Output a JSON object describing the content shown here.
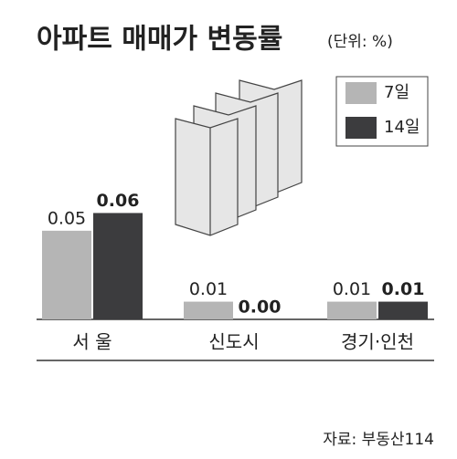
{
  "chart_data": {
    "type": "bar",
    "title": "아파트 매매가 변동률",
    "subtitle": "(단위: %)",
    "source": "자료: 부동산114",
    "categories": [
      "서 울",
      "신도시",
      "경기·인천"
    ],
    "series": [
      {
        "name": "7일",
        "color": "#b5b5b5",
        "values": [
          0.05,
          0.01,
          0.01
        ],
        "value_labels": [
          "0.05",
          "0.01",
          "0.01"
        ]
      },
      {
        "name": "14일",
        "color": "#3c3c3e",
        "values": [
          0.06,
          0,
          0.01
        ],
        "value_labels": [
          "0.06",
          "0.00",
          "0.01"
        ]
      }
    ],
    "ylim": [
      0,
      0.07
    ]
  }
}
